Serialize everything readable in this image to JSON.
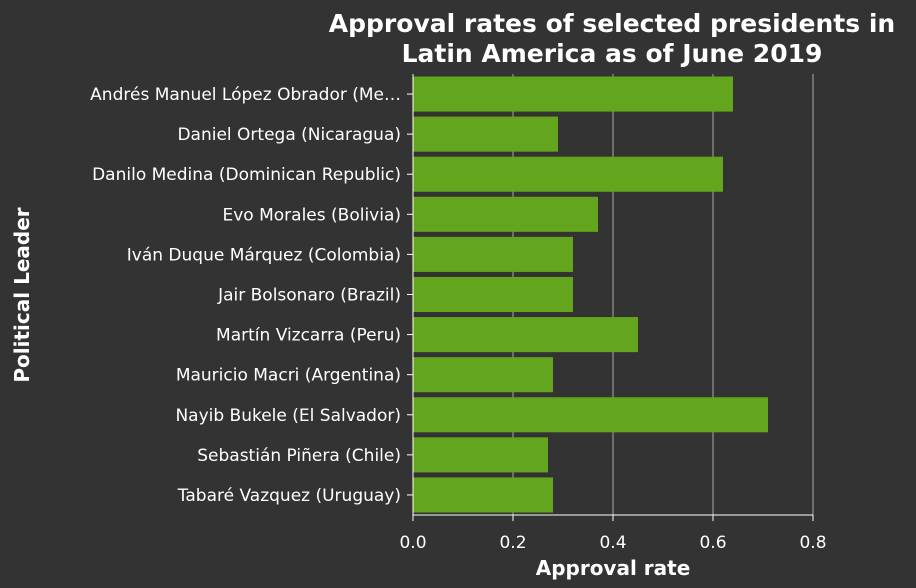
{
  "colors": {
    "background": "#333333",
    "bar": "#64a51e",
    "text": "#ffffff",
    "grid": "#aaaaaa"
  },
  "chart_data": {
    "type": "bar",
    "orientation": "horizontal",
    "title_lines": [
      "Approval rates of selected presidents in",
      "Latin America as of June 2019"
    ],
    "xlabel": "Approval rate",
    "ylabel": "Political Leader",
    "xlim": [
      0,
      0.8
    ],
    "xticks": [
      "0.0",
      "0.2",
      "0.4",
      "0.6",
      "0.8"
    ],
    "grid": "vertical",
    "categories": [
      "Andrés Manuel López Obrador (Me…",
      "Daniel Ortega (Nicaragua)",
      "Danilo Medina (Dominican Republic)",
      "Evo Morales (Bolivia)",
      "Iván Duque Márquez (Colombia)",
      "Jair Bolsonaro (Brazil)",
      "Martín Vizcarra (Peru)",
      "Mauricio Macri (Argentina)",
      "Nayib Bukele (El Salvador)",
      "Sebastián Piñera (Chile)",
      "Tabaré Vazquez (Uruguay)"
    ],
    "values": [
      0.64,
      0.29,
      0.62,
      0.37,
      0.32,
      0.32,
      0.45,
      0.28,
      0.71,
      0.27,
      0.28
    ]
  }
}
